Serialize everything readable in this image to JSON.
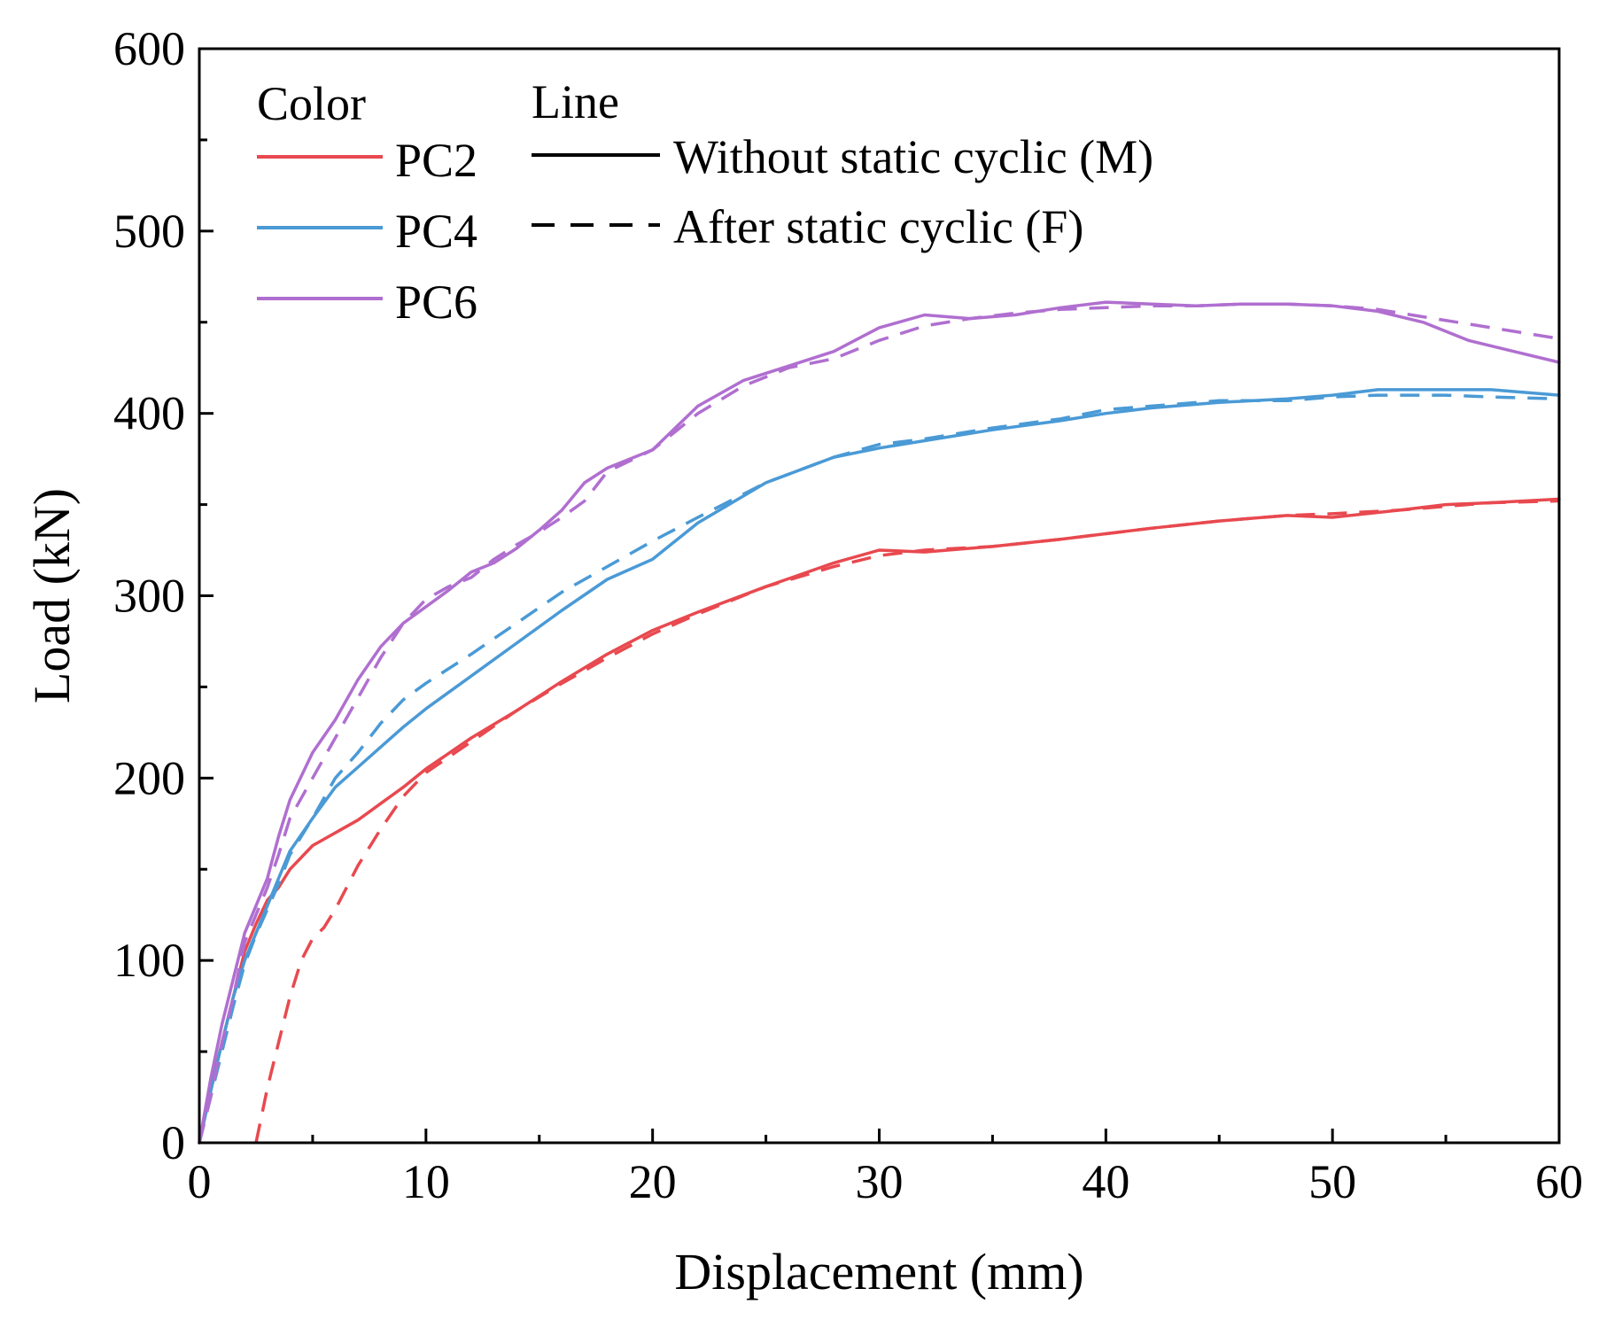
{
  "chart_data": {
    "type": "line",
    "title": "",
    "xlabel": "Displacement (mm)",
    "ylabel": "Load (kN)",
    "xlim": [
      0,
      60
    ],
    "ylim": [
      0,
      600
    ],
    "xticks": [
      0,
      10,
      20,
      30,
      40,
      50,
      60
    ],
    "yticks": [
      0,
      100,
      200,
      300,
      400,
      500,
      600
    ],
    "grid": false,
    "legend": {
      "placement": "top-left",
      "color_header": "Color",
      "line_header": "Line",
      "color_entries": [
        {
          "label": "PC2",
          "color": "#e8494f"
        },
        {
          "label": "PC4",
          "color": "#4a9ad6"
        },
        {
          "label": "PC6",
          "color": "#b06fd0"
        }
      ],
      "line_entries": [
        {
          "label": "Without static cyclic (M)",
          "style": "solid"
        },
        {
          "label": "After static cyclic (F)",
          "style": "dashed"
        }
      ]
    },
    "series": [
      {
        "name": "PC2 (M)",
        "specimen": "PC2",
        "style": "solid",
        "color": "#e8494f",
        "x": [
          0,
          0.5,
          1,
          1.5,
          2,
          2.5,
          3,
          3.5,
          4,
          5,
          6,
          7,
          8,
          9,
          10,
          12,
          14,
          16,
          18,
          20,
          22,
          25,
          28,
          30,
          32,
          35,
          38,
          40,
          42,
          45,
          48,
          50,
          53,
          55,
          57,
          60
        ],
        "y": [
          0,
          30,
          55,
          80,
          105,
          120,
          133,
          140,
          150,
          163,
          170,
          177,
          186,
          195,
          205,
          222,
          237,
          253,
          268,
          281,
          291,
          305,
          318,
          325,
          324,
          327,
          331,
          334,
          337,
          341,
          344,
          343,
          347,
          350,
          351,
          353
        ]
      },
      {
        "name": "PC2 (F)",
        "specimen": "PC2",
        "style": "dashed",
        "color": "#e8494f",
        "x": [
          2.5,
          3,
          3.5,
          4,
          4.5,
          5,
          5.5,
          6,
          6.5,
          7,
          8,
          9,
          10,
          12,
          14,
          16,
          18,
          20,
          22,
          25,
          28,
          30,
          32,
          35,
          38,
          40,
          42,
          45,
          48,
          50,
          53,
          55,
          57,
          60
        ],
        "y": [
          0,
          30,
          55,
          80,
          100,
          112,
          118,
          128,
          140,
          152,
          172,
          190,
          203,
          220,
          237,
          252,
          266,
          279,
          290,
          305,
          316,
          322,
          325,
          327,
          331,
          334,
          337,
          341,
          344,
          345,
          347,
          349,
          351,
          352
        ]
      },
      {
        "name": "PC4 (M)",
        "specimen": "PC4",
        "style": "solid",
        "color": "#4a9ad6",
        "x": [
          0,
          0.5,
          1,
          1.5,
          2,
          2.5,
          3,
          3.5,
          4,
          5,
          6,
          7,
          8,
          9,
          10,
          12,
          14,
          16,
          18,
          20,
          22,
          25,
          28,
          30,
          32,
          35,
          38,
          40,
          42,
          45,
          48,
          50,
          52,
          55,
          57,
          60
        ],
        "y": [
          0,
          28,
          55,
          80,
          100,
          115,
          130,
          145,
          160,
          178,
          195,
          206,
          217,
          228,
          238,
          256,
          274,
          292,
          309,
          320,
          340,
          362,
          376,
          381,
          385,
          391,
          396,
          400,
          403,
          406,
          408,
          410,
          413,
          413,
          413,
          410
        ]
      },
      {
        "name": "PC4 (F)",
        "specimen": "PC4",
        "style": "dashed",
        "color": "#4a9ad6",
        "x": [
          0,
          0.5,
          1,
          1.5,
          2,
          2.5,
          3,
          3.5,
          4,
          5,
          6,
          7,
          8,
          9,
          10,
          12,
          14,
          16,
          18,
          20,
          22,
          25,
          28,
          30,
          32,
          35,
          38,
          40,
          42,
          45,
          48,
          50,
          52,
          55,
          57,
          60
        ],
        "y": [
          0,
          25,
          50,
          75,
          98,
          114,
          128,
          142,
          158,
          178,
          200,
          214,
          230,
          243,
          252,
          268,
          285,
          302,
          316,
          330,
          343,
          362,
          376,
          383,
          386,
          392,
          397,
          402,
          404,
          407,
          407,
          409,
          410,
          410,
          409,
          408
        ]
      },
      {
        "name": "PC6 (M)",
        "specimen": "PC6",
        "style": "solid",
        "color": "#b06fd0",
        "x": [
          0,
          0.5,
          1,
          1.5,
          2,
          2.5,
          3,
          3.5,
          4,
          5,
          6,
          7,
          8,
          9,
          10,
          11,
          12,
          13,
          14,
          15,
          16,
          17,
          18,
          20,
          22,
          24,
          26,
          28,
          30,
          32,
          34,
          36,
          38,
          40,
          42,
          44,
          46,
          48,
          50,
          52,
          54,
          56,
          58,
          60
        ],
        "y": [
          0,
          35,
          65,
          90,
          115,
          130,
          145,
          168,
          188,
          214,
          232,
          254,
          272,
          285,
          294,
          303,
          313,
          318,
          326,
          336,
          347,
          362,
          370,
          380,
          404,
          418,
          426,
          434,
          447,
          454,
          452,
          454,
          458,
          461,
          460,
          459,
          460,
          460,
          459,
          456,
          450,
          440,
          434,
          428
        ]
      },
      {
        "name": "PC6 (F)",
        "specimen": "PC6",
        "style": "dashed",
        "color": "#b06fd0",
        "x": [
          0,
          0.5,
          1,
          1.5,
          2,
          2.5,
          3,
          3.5,
          4,
          5,
          6,
          7,
          8,
          9,
          10,
          11,
          12,
          13,
          14,
          15,
          16,
          17,
          18,
          20,
          22,
          24,
          26,
          28,
          30,
          32,
          34,
          36,
          38,
          40,
          42,
          44,
          46,
          48,
          50,
          52,
          54,
          56,
          58,
          60
        ],
        "y": [
          0,
          25,
          55,
          80,
          110,
          125,
          140,
          158,
          178,
          200,
          222,
          244,
          266,
          285,
          298,
          305,
          310,
          320,
          328,
          335,
          343,
          352,
          368,
          380,
          400,
          415,
          425,
          430,
          440,
          448,
          452,
          455,
          457,
          458,
          459,
          459,
          460,
          460,
          459,
          457,
          453,
          449,
          445,
          441
        ]
      }
    ]
  }
}
